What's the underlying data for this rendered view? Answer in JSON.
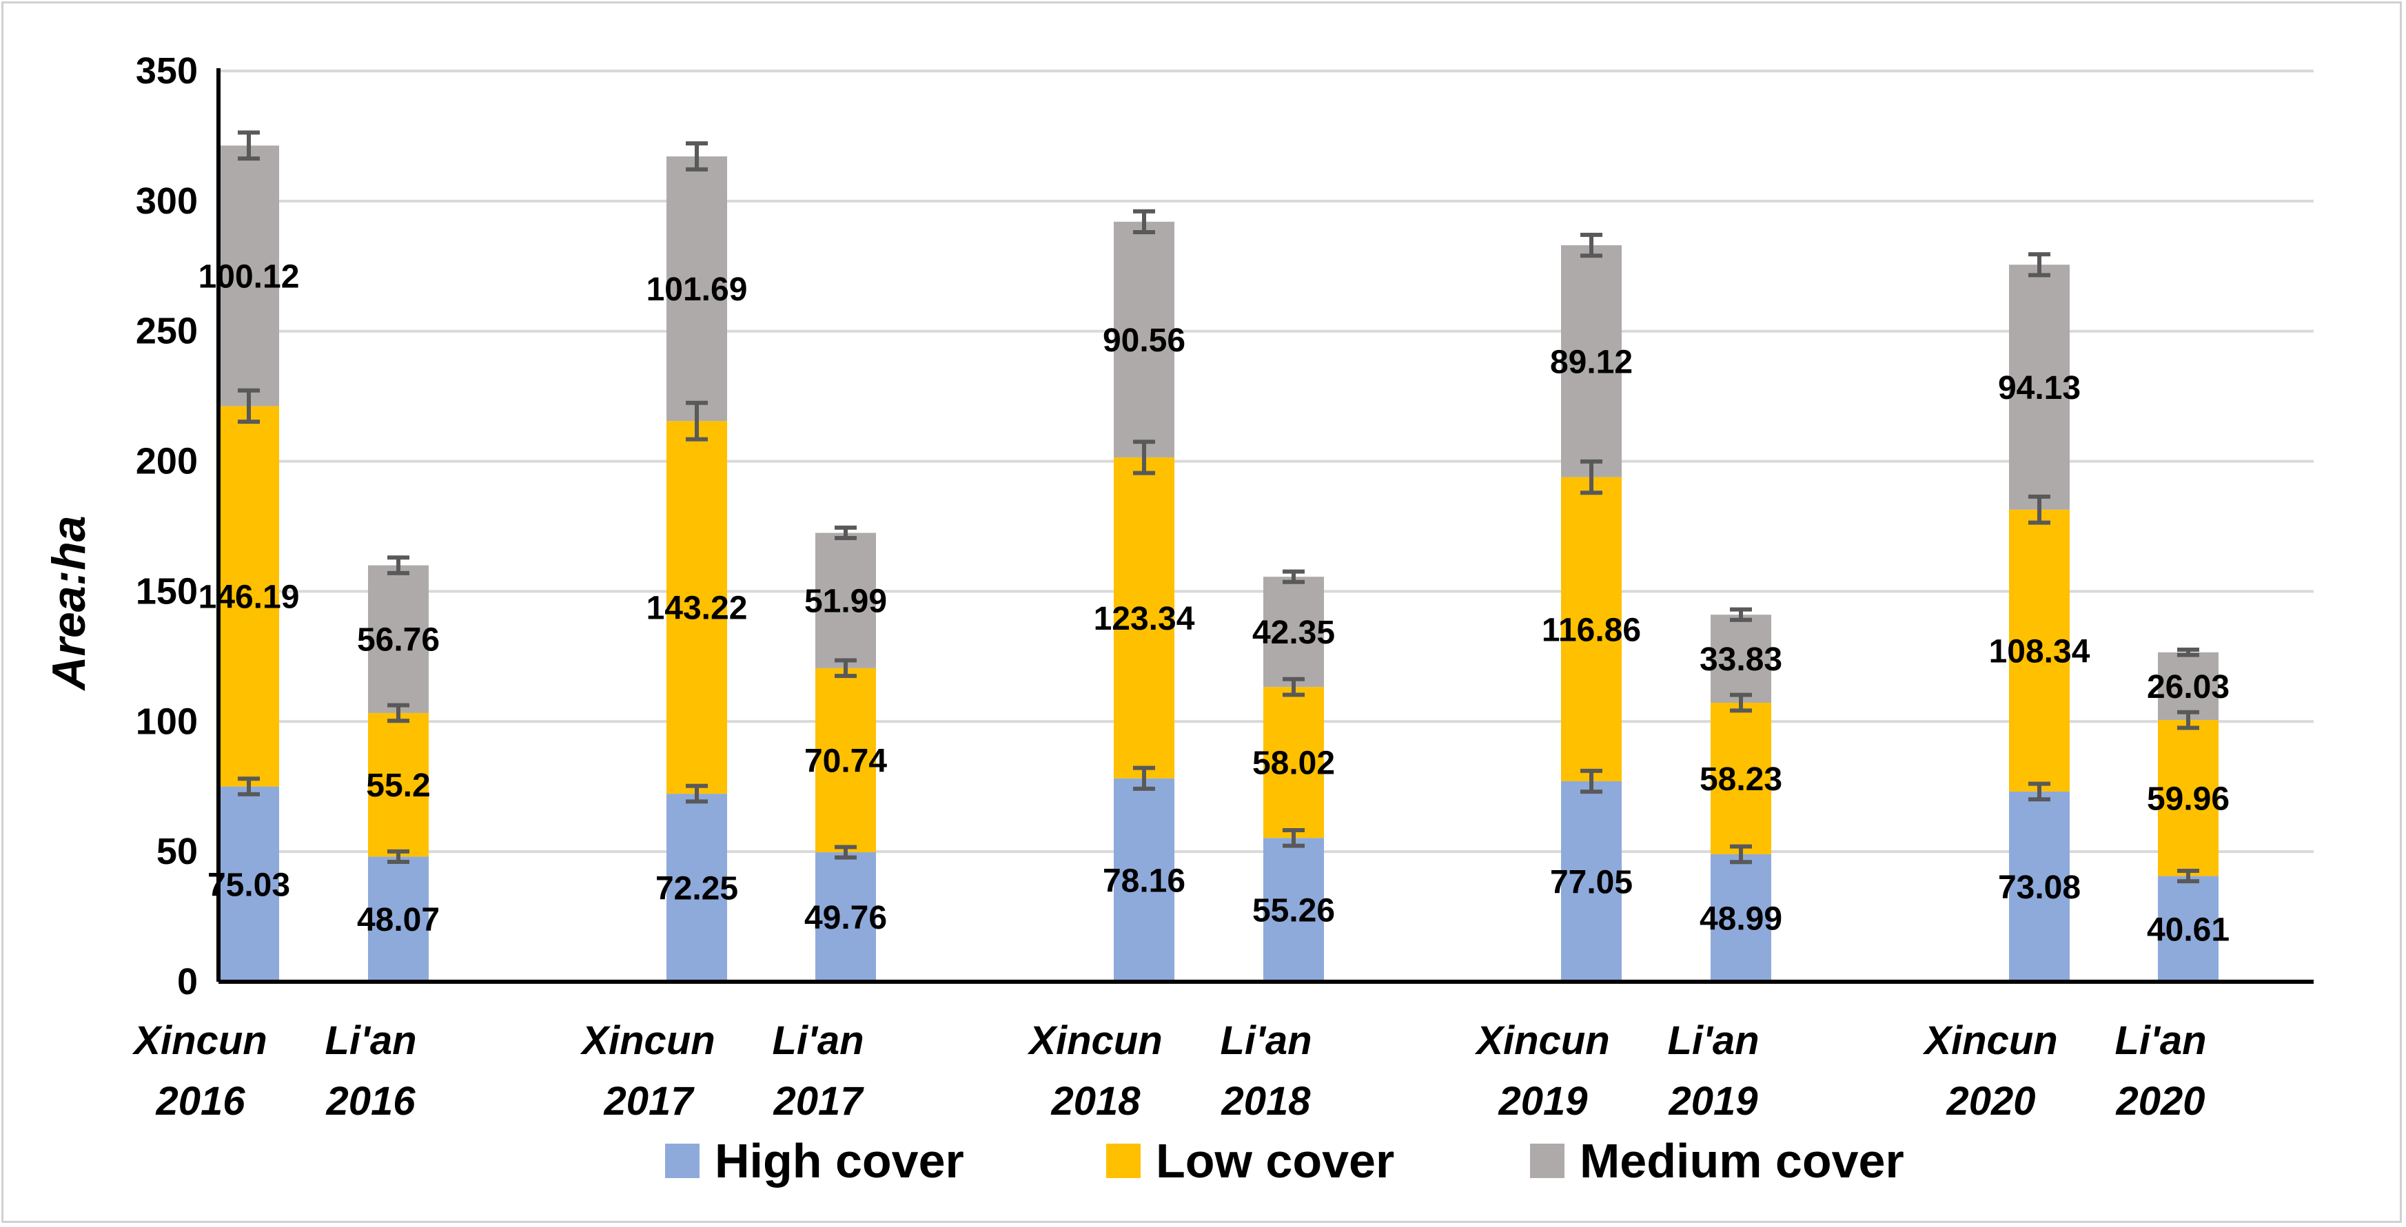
{
  "chart_data": {
    "type": "bar",
    "stacked": true,
    "categories": [
      [
        "Xincun",
        "2016"
      ],
      [
        "Li'an",
        "2016"
      ],
      [
        "Xincun",
        "2017"
      ],
      [
        "Li'an",
        "2017"
      ],
      [
        "Xincun",
        "2018"
      ],
      [
        "Li'an",
        "2018"
      ],
      [
        "Xincun",
        "2019"
      ],
      [
        "Li'an",
        "2019"
      ],
      [
        "Xincun",
        "2020"
      ],
      [
        "Li'an",
        "2020"
      ]
    ],
    "series": [
      {
        "name": "High cover",
        "color": "#8eaadb",
        "values": [
          75.03,
          48.07,
          72.25,
          49.76,
          78.16,
          55.26,
          77.05,
          48.99,
          73.08,
          40.61
        ],
        "labels": [
          "75.03",
          "48.07",
          "72.25",
          "49.76",
          "78.16",
          "55.26",
          "77.05",
          "48.99",
          "73.08",
          "40.61"
        ],
        "errors": [
          3,
          2,
          3,
          2,
          4,
          3,
          4,
          3,
          3,
          2
        ]
      },
      {
        "name": "Low cover",
        "color": "#ffc000",
        "values": [
          146.19,
          55.2,
          143.22,
          70.74,
          123.34,
          58.02,
          116.86,
          58.23,
          108.34,
          59.96
        ],
        "labels": [
          "146.19",
          "55.2",
          "143.22",
          "70.74",
          "123.34",
          "58.02",
          "116.86",
          "58.23",
          "108.34",
          "59.96"
        ],
        "errors": [
          6,
          3,
          7,
          3,
          6,
          3,
          6,
          3,
          5,
          3
        ]
      },
      {
        "name": "Medium cover",
        "color": "#aeaaaa",
        "values": [
          100.12,
          56.76,
          101.69,
          51.99,
          90.56,
          42.35,
          89.12,
          33.83,
          94.13,
          26.03
        ],
        "labels": [
          "100.12",
          "56.76",
          "101.69",
          "51.99",
          "90.56",
          "42.35",
          "89.12",
          "33.83",
          "94.13",
          "26.03"
        ],
        "errors": [
          5,
          3,
          5,
          2,
          4,
          2,
          4,
          2,
          4,
          1
        ]
      }
    ],
    "ylabel": "Area:ha",
    "ylim": [
      0,
      350
    ],
    "yticks": [
      0,
      50,
      100,
      150,
      200,
      250,
      300,
      350
    ],
    "grid": true,
    "legend": "bottom"
  }
}
